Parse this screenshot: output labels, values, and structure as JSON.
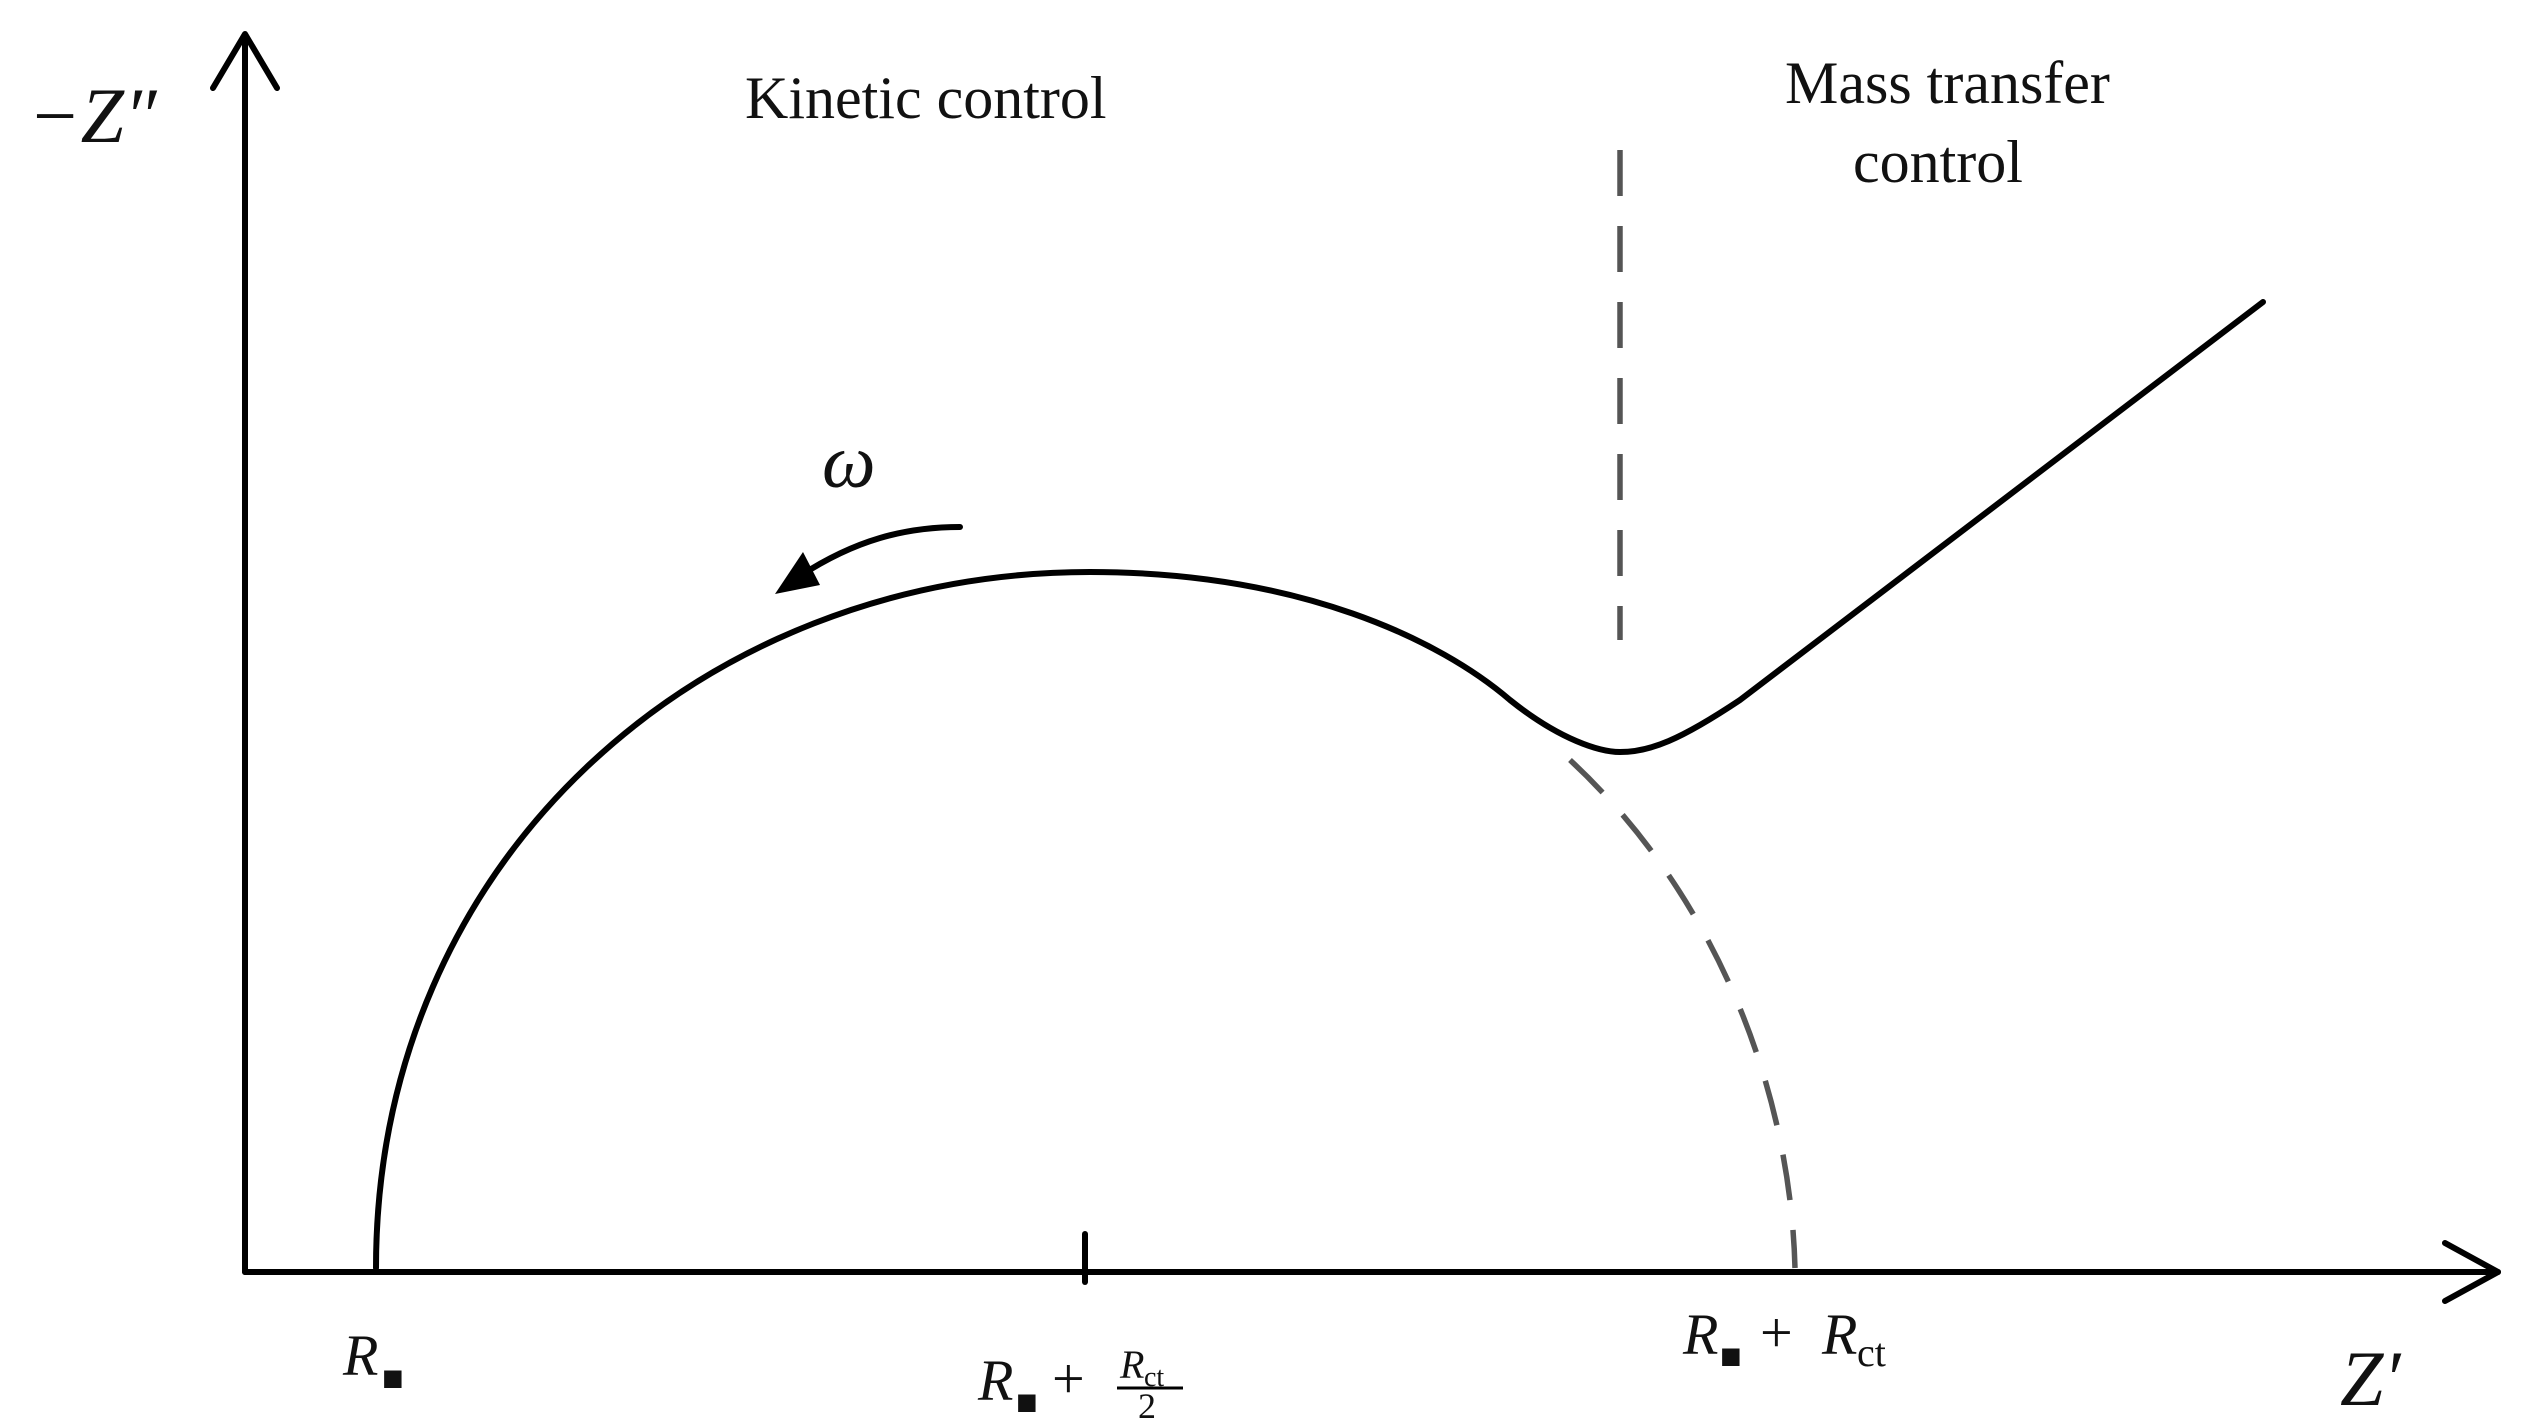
{
  "axes": {
    "y_label": "−Z″",
    "x_label": "Z′"
  },
  "regions": {
    "kinetic": "Kinetic control",
    "mass_line1": "Mass transfer",
    "mass_line2": "control"
  },
  "frequency_symbol": "ω",
  "ticks": {
    "r_symbol": "R",
    "r_subscript": "■",
    "plus": "+",
    "rct_symbol": "R",
    "rct_subscript": "ct",
    "half_denominator": "2"
  },
  "colors": {
    "curve": "#000000",
    "dashed": "#555555",
    "text": "#111111"
  }
}
